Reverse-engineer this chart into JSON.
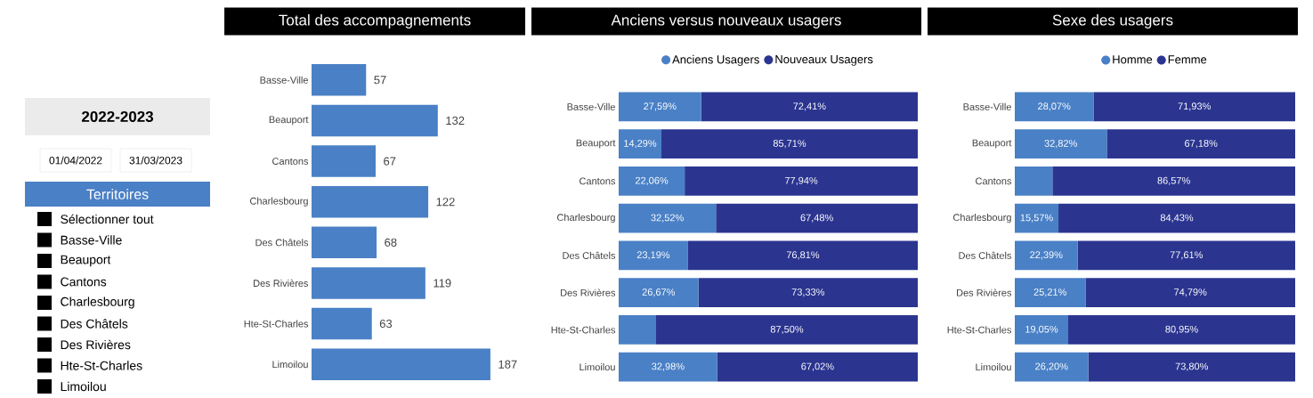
{
  "chart_data": [
    {
      "type": "other",
      "title": "2022-2023",
      "subtitle": "Territoires",
      "annotations": [
        "01/04/2022",
        "31/03/2023",
        "Sélectionner tout",
        "Basse-Ville",
        "Beauport",
        "Cantons",
        "Charlesbourg",
        "Des Châtels",
        "Des Rivières",
        "Hte-St-Charles",
        "Limoilou"
      ]
    },
    {
      "type": "bar",
      "orientation": "horizontal",
      "title": "Total des accompagnements",
      "categories": [
        "Basse-Ville",
        "Beauport",
        "Cantons",
        "Charlesbourg",
        "Des Châtels",
        "Des Rivières",
        "Hte-St-Charles",
        "Limoilou"
      ],
      "values": [
        57,
        132,
        67,
        122,
        68,
        119,
        63,
        187
      ],
      "color": "#4a80c6",
      "data_labels": true
    },
    {
      "type": "bar",
      "orientation": "horizontal",
      "stacked": true,
      "title": "Anciens versus nouveaux usagers",
      "legend": "top",
      "categories": [
        "Basse-Ville",
        "Beauport",
        "Cantons",
        "Charlesbourg",
        "Des Châtels",
        "Des Rivières",
        "Hte-St-Charles",
        "Limoilou"
      ],
      "series": [
        {
          "name": "Anciens Usagers",
          "color": "#4a80c6",
          "values": [
            27.59,
            14.29,
            22.06,
            32.52,
            23.19,
            26.67,
            12.5,
            32.98
          ],
          "value_labels": [
            "27,59%",
            "14,29%",
            "22,06%",
            "32,52%",
            "23,19%",
            "26,67%",
            null,
            "32,98%"
          ]
        },
        {
          "name": "Nouveaux Usagers",
          "color": "#2b3590",
          "values": [
            72.41,
            85.71,
            77.94,
            67.48,
            76.81,
            73.33,
            87.5,
            67.02
          ],
          "value_labels": [
            "72,41%",
            "85,71%",
            "77,94%",
            "67,48%",
            "76,81%",
            "73,33%",
            "87,50%",
            "67,02%"
          ]
        }
      ]
    },
    {
      "type": "bar",
      "orientation": "horizontal",
      "stacked": true,
      "title": "Sexe des usagers",
      "legend": "top",
      "categories": [
        "Basse-Ville",
        "Beauport",
        "Cantons",
        "Charlesbourg",
        "Des Châtels",
        "Des Rivières",
        "Hte-St-Charles",
        "Limoilou"
      ],
      "series": [
        {
          "name": "Homme",
          "color": "#4a80c6",
          "values": [
            28.07,
            32.82,
            13.43,
            15.57,
            22.39,
            25.21,
            19.05,
            26.2
          ],
          "value_labels": [
            "28,07%",
            "32,82%",
            null,
            "15,57%",
            "22,39%",
            "25,21%",
            "19,05%",
            "26,20%"
          ]
        },
        {
          "name": "Femme",
          "color": "#2b3590",
          "values": [
            71.93,
            67.18,
            86.57,
            84.43,
            77.61,
            74.79,
            80.95,
            73.8
          ],
          "value_labels": [
            "71,93%",
            "67,18%",
            "86,57%",
            "84,43%",
            "77,61%",
            "74,79%",
            "80,95%",
            "73,80%"
          ]
        }
      ]
    }
  ]
}
